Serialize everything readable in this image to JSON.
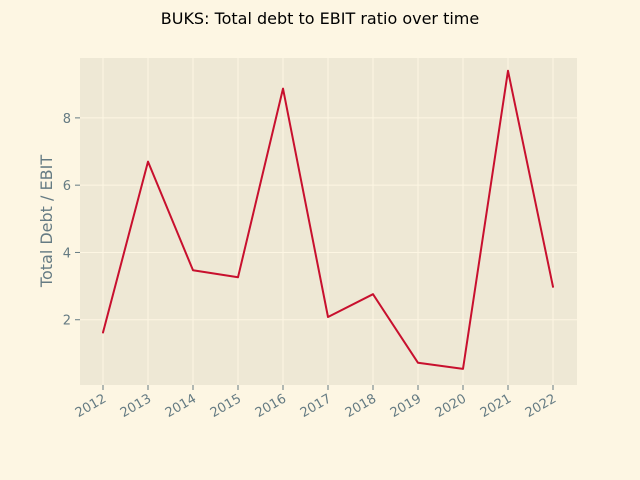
{
  "chart_data": {
    "type": "line",
    "title": "BUKS: Total debt to EBIT ratio over time",
    "xlabel": "",
    "ylabel": "Total Debt / EBIT",
    "x": [
      "2012",
      "2013",
      "2014",
      "2015",
      "2016",
      "2017",
      "2018",
      "2019",
      "2020",
      "2021",
      "2022"
    ],
    "series": [
      {
        "name": "",
        "values": [
          1.62,
          6.7,
          3.47,
          3.26,
          8.87,
          2.08,
          2.76,
          0.72,
          0.54,
          9.4,
          2.98
        ]
      }
    ],
    "ylim": [
      0.06,
      9.78
    ],
    "yticks": [
      2,
      4,
      6,
      8
    ],
    "grid": true,
    "colors": {
      "page_background": "#fdf6e3",
      "plot_background": "#eee8d5",
      "grid": "#fdf6e3",
      "line": "#c8102e",
      "tick_text": "#657b83",
      "title_text": "#000000"
    }
  }
}
